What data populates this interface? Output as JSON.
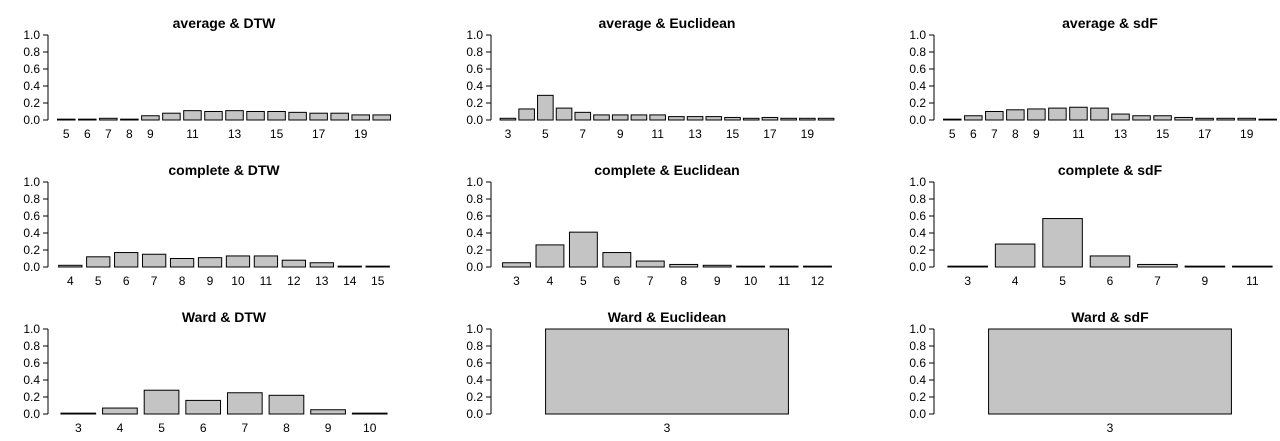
{
  "colors": {
    "bar_fill": "#c4c4c4",
    "bar_stroke": "#000000",
    "background": "#ffffff"
  },
  "chart_data": [
    {
      "type": "bar",
      "title": "average & DTW",
      "categories": [
        "5",
        "6",
        "7",
        "8",
        "9",
        "10",
        "11",
        "12",
        "13",
        "14",
        "15",
        "16",
        "17",
        "18",
        "19",
        "20"
      ],
      "x_tick_labels": [
        "5",
        "6",
        "7",
        "8",
        "9",
        "",
        "11",
        "",
        "13",
        "",
        "15",
        "",
        "17",
        "",
        "19",
        ""
      ],
      "values": [
        0.01,
        0.01,
        0.02,
        0.01,
        0.05,
        0.08,
        0.11,
        0.1,
        0.11,
        0.1,
        0.1,
        0.09,
        0.08,
        0.08,
        0.06,
        0.06
      ],
      "xlabel": "",
      "ylabel": "",
      "ylim": [
        0,
        1
      ],
      "y_ticks": [
        "0.0",
        "0.2",
        "0.4",
        "0.6",
        "0.8",
        "1.0"
      ],
      "grid": false
    },
    {
      "type": "bar",
      "title": "average & Euclidean",
      "categories": [
        "3",
        "4",
        "5",
        "6",
        "7",
        "8",
        "9",
        "10",
        "11",
        "12",
        "13",
        "14",
        "15",
        "16",
        "17",
        "18",
        "19",
        "20"
      ],
      "x_tick_labels": [
        "3",
        "",
        "5",
        "",
        "7",
        "",
        "9",
        "",
        "11",
        "",
        "13",
        "",
        "15",
        "",
        "17",
        "",
        "19",
        ""
      ],
      "values": [
        0.02,
        0.13,
        0.29,
        0.14,
        0.09,
        0.06,
        0.06,
        0.06,
        0.06,
        0.04,
        0.04,
        0.04,
        0.03,
        0.02,
        0.03,
        0.02,
        0.02,
        0.02
      ],
      "xlabel": "",
      "ylabel": "",
      "ylim": [
        0,
        1
      ],
      "y_ticks": [
        "0.0",
        "0.2",
        "0.4",
        "0.6",
        "0.8",
        "1.0"
      ],
      "grid": false
    },
    {
      "type": "bar",
      "title": "average & sdF",
      "categories": [
        "5",
        "6",
        "7",
        "8",
        "9",
        "10",
        "11",
        "12",
        "13",
        "14",
        "15",
        "16",
        "17",
        "18",
        "19",
        "20"
      ],
      "x_tick_labels": [
        "5",
        "6",
        "7",
        "8",
        "9",
        "",
        "11",
        "",
        "13",
        "",
        "15",
        "",
        "17",
        "",
        "19",
        ""
      ],
      "values": [
        0.01,
        0.05,
        0.1,
        0.12,
        0.13,
        0.14,
        0.15,
        0.14,
        0.07,
        0.05,
        0.05,
        0.03,
        0.02,
        0.02,
        0.02,
        0.01
      ],
      "xlabel": "",
      "ylabel": "",
      "ylim": [
        0,
        1
      ],
      "y_ticks": [
        "0.0",
        "0.2",
        "0.4",
        "0.6",
        "0.8",
        "1.0"
      ],
      "grid": false
    },
    {
      "type": "bar",
      "title": "complete & DTW",
      "categories": [
        "4",
        "5",
        "6",
        "7",
        "8",
        "9",
        "10",
        "11",
        "12",
        "13",
        "14",
        "15"
      ],
      "x_tick_labels": [
        "4",
        "5",
        "6",
        "7",
        "8",
        "9",
        "10",
        "11",
        "12",
        "13",
        "14",
        "15"
      ],
      "values": [
        0.02,
        0.12,
        0.17,
        0.15,
        0.1,
        0.11,
        0.13,
        0.13,
        0.08,
        0.05,
        0.01,
        0.01
      ],
      "xlabel": "",
      "ylabel": "",
      "ylim": [
        0,
        1
      ],
      "y_ticks": [
        "0.0",
        "0.2",
        "0.4",
        "0.6",
        "0.8",
        "1.0"
      ],
      "grid": false
    },
    {
      "type": "bar",
      "title": "complete & Euclidean",
      "categories": [
        "3",
        "4",
        "5",
        "6",
        "7",
        "8",
        "9",
        "10",
        "11",
        "12"
      ],
      "x_tick_labels": [
        "3",
        "4",
        "5",
        "6",
        "7",
        "8",
        "9",
        "10",
        "11",
        "12"
      ],
      "values": [
        0.05,
        0.26,
        0.41,
        0.17,
        0.07,
        0.03,
        0.02,
        0.01,
        0.01,
        0.01
      ],
      "xlabel": "",
      "ylabel": "",
      "ylim": [
        0,
        1
      ],
      "y_ticks": [
        "0.0",
        "0.2",
        "0.4",
        "0.6",
        "0.8",
        "1.0"
      ],
      "grid": false
    },
    {
      "type": "bar",
      "title": "complete & sdF",
      "categories": [
        "3",
        "4",
        "5",
        "6",
        "7",
        "9",
        "11"
      ],
      "x_tick_labels": [
        "3",
        "4",
        "5",
        "6",
        "7",
        "9",
        "11"
      ],
      "values": [
        0.01,
        0.27,
        0.57,
        0.13,
        0.03,
        0.01,
        0.01
      ],
      "xlabel": "",
      "ylabel": "",
      "ylim": [
        0,
        1
      ],
      "y_ticks": [
        "0.0",
        "0.2",
        "0.4",
        "0.6",
        "0.8",
        "1.0"
      ],
      "grid": false
    },
    {
      "type": "bar",
      "title": "Ward & DTW",
      "categories": [
        "3",
        "4",
        "5",
        "6",
        "7",
        "8",
        "9",
        "10"
      ],
      "x_tick_labels": [
        "3",
        "4",
        "5",
        "6",
        "7",
        "8",
        "9",
        "10"
      ],
      "values": [
        0.01,
        0.07,
        0.28,
        0.16,
        0.25,
        0.22,
        0.05,
        0.01
      ],
      "xlabel": "",
      "ylabel": "",
      "ylim": [
        0,
        1
      ],
      "y_ticks": [
        "0.0",
        "0.2",
        "0.4",
        "0.6",
        "0.8",
        "1.0"
      ],
      "grid": false
    },
    {
      "type": "bar",
      "title": "Ward & Euclidean",
      "categories": [
        "3"
      ],
      "x_tick_labels": [
        "3"
      ],
      "values": [
        1.0
      ],
      "xlabel": "",
      "ylabel": "",
      "ylim": [
        0,
        1
      ],
      "y_ticks": [
        "0.0",
        "0.2",
        "0.4",
        "0.6",
        "0.8",
        "1.0"
      ],
      "grid": false
    },
    {
      "type": "bar",
      "title": "Ward & sdF",
      "categories": [
        "3"
      ],
      "x_tick_labels": [
        "3"
      ],
      "values": [
        1.0
      ],
      "xlabel": "",
      "ylabel": "",
      "ylim": [
        0,
        1
      ],
      "y_ticks": [
        "0.0",
        "0.2",
        "0.4",
        "0.6",
        "0.8",
        "1.0"
      ],
      "grid": false
    }
  ]
}
